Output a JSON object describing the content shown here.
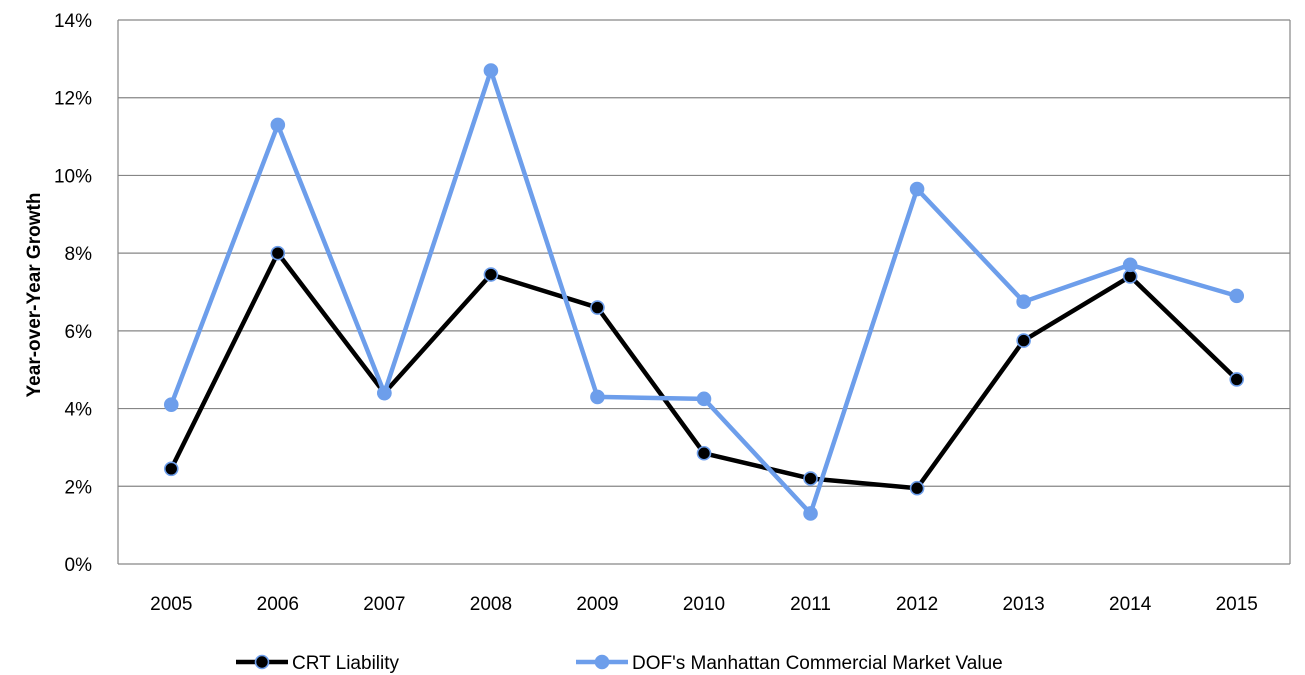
{
  "chart_data": {
    "type": "line",
    "title": "",
    "xlabel": "",
    "ylabel": "Year-over-Year Growth",
    "categories": [
      "2005",
      "2006",
      "2007",
      "2008",
      "2009",
      "2010",
      "2011",
      "2012",
      "2013",
      "2014",
      "2015"
    ],
    "ylim": [
      0,
      14
    ],
    "y_ticks": [
      "0%",
      "2%",
      "4%",
      "6%",
      "8%",
      "10%",
      "12%",
      "14%"
    ],
    "grid": "horizontal",
    "legend_position": "bottom",
    "series": [
      {
        "name": "CRT Liability",
        "color": "#000000",
        "marker_fill": "#000000",
        "values": [
          2.45,
          8.0,
          4.4,
          7.45,
          6.6,
          2.85,
          2.2,
          1.95,
          5.75,
          7.4,
          4.75
        ]
      },
      {
        "name": "DOF's Manhattan Commercial Market Value",
        "color": "#6d9eeb",
        "marker_fill": "#6d9eeb",
        "values": [
          4.1,
          11.3,
          4.4,
          12.7,
          4.3,
          4.25,
          1.3,
          9.65,
          6.75,
          7.7,
          6.9
        ]
      }
    ]
  }
}
